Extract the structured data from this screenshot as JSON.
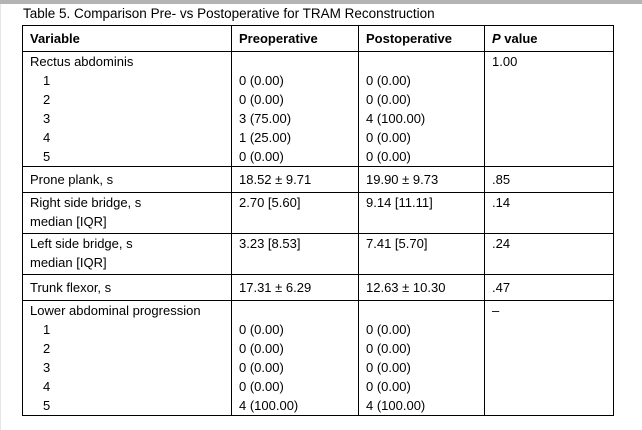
{
  "page": {
    "title": "Table 5. Comparison Pre- vs Postoperative for TRAM Reconstruction"
  },
  "table": {
    "headers": [
      "Variable",
      "Preoperative",
      "Postoperative"
    ],
    "p_header": {
      "italic": "P",
      "rest": " value"
    },
    "rows": [
      {
        "name": "rectus-abdominis",
        "variable": [
          "Rectus abdominis",
          "1",
          "2",
          "3",
          "4",
          "5"
        ],
        "pre": [
          "",
          "0 (0.00)",
          "0 (0.00)",
          "3 (75.00)",
          "1 (25.00)",
          "0 (0.00)"
        ],
        "post": [
          "",
          "0 (0.00)",
          "0 (0.00)",
          "4 (100.00)",
          "0 (0.00)",
          "0 (0.00)"
        ],
        "p": "1.00"
      },
      {
        "name": "prone-plank",
        "variable": "Prone plank, s",
        "pre": "18.52 ± 9.71",
        "post": "19.90 ± 9.73",
        "p": ".85"
      },
      {
        "name": "right-side-bridge",
        "variable": [
          "Right side bridge, s",
          "median [IQR]"
        ],
        "pre": "2.70 [5.60]",
        "post": "9.14 [11.11]",
        "p": ".14"
      },
      {
        "name": "left-side-bridge",
        "variable": [
          "Left side bridge, s",
          "median [IQR]"
        ],
        "pre": "3.23 [8.53]",
        "post": "7.41 [5.70]",
        "p": ".24"
      },
      {
        "name": "trunk-flexor",
        "variable": "Trunk flexor, s",
        "pre": "17.31 ± 6.29",
        "post": "12.63 ± 10.30",
        "p": ".47"
      },
      {
        "name": "lower-abdominal-progression",
        "variable": [
          "Lower abdominal progression",
          "1",
          "2",
          "3",
          "4",
          "5"
        ],
        "pre": [
          "",
          "0 (0.00)",
          "0 (0.00)",
          "0 (0.00)",
          "0 (0.00)",
          "4 (100.00)"
        ],
        "post": [
          "",
          "0 (0.00)",
          "0 (0.00)",
          "0 (0.00)",
          "0 (0.00)",
          "4 (100.00)"
        ],
        "p": "–"
      }
    ]
  }
}
